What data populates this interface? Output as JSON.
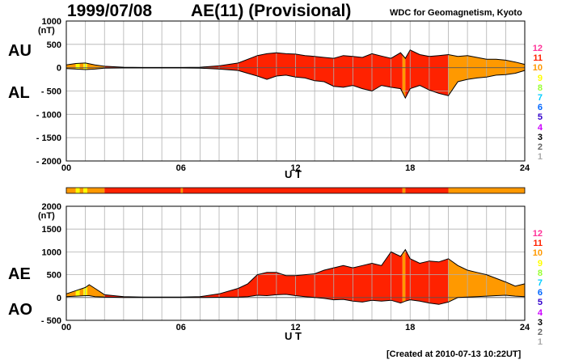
{
  "header": {
    "date": "1999/07/08",
    "title": "AE(11) (Provisional)",
    "source": "WDC for Geomagnetism, Kyoto"
  },
  "footer": {
    "created": "[Created at 2010-07-13 10:22UT]"
  },
  "panels": {
    "top": {
      "label_upper": "AU",
      "label_lower": "AL",
      "unit": "(nT)"
    },
    "bottom": {
      "label_upper": "AE",
      "label_lower": "AO",
      "unit": "(nT)"
    }
  },
  "legend": [
    {
      "label": "12",
      "color": "#ff3399"
    },
    {
      "label": "11",
      "color": "#ff2200"
    },
    {
      "label": "10",
      "color": "#ff9900"
    },
    {
      "label": "9",
      "color": "#ffff00"
    },
    {
      "label": "8",
      "color": "#99ff33"
    },
    {
      "label": "7",
      "color": "#00ccff"
    },
    {
      "label": "6",
      "color": "#0066ff"
    },
    {
      "label": "5",
      "color": "#3300cc"
    },
    {
      "label": "4",
      "color": "#cc00ff"
    },
    {
      "label": "3",
      "color": "#000000"
    },
    {
      "label": "2",
      "color": "#666666"
    },
    {
      "label": "1",
      "color": "#aaaaaa"
    }
  ],
  "station_bar": [
    {
      "from": 0,
      "to": 0.5,
      "stations": 10
    },
    {
      "from": 0.5,
      "to": 0.7,
      "stations": 9
    },
    {
      "from": 0.7,
      "to": 0.9,
      "stations": 10
    },
    {
      "from": 0.9,
      "to": 1.1,
      "stations": 9
    },
    {
      "from": 1.1,
      "to": 2,
      "stations": 10
    },
    {
      "from": 2,
      "to": 6,
      "stations": 11
    },
    {
      "from": 6,
      "to": 6.1,
      "stations": 10
    },
    {
      "from": 6.1,
      "to": 17.6,
      "stations": 11
    },
    {
      "from": 17.6,
      "to": 17.75,
      "stations": 10
    },
    {
      "from": 17.75,
      "to": 20,
      "stations": 11
    },
    {
      "from": 20,
      "to": 24,
      "stations": 10
    }
  ],
  "chart_data": [
    {
      "type": "area",
      "series_names": [
        "AU",
        "AL"
      ],
      "xlabel": "U T",
      "ylabel": "(nT)",
      "xlim": [
        0,
        24
      ],
      "ylim": [
        -2000,
        1000
      ],
      "xticks": [
        0,
        6,
        12,
        18,
        24
      ],
      "xtick_labels": [
        "00",
        "06",
        "12",
        "18",
        "24"
      ],
      "yticks": [
        1000,
        500,
        0,
        -500,
        -1000,
        -1500,
        -2000
      ],
      "ytick_labels": [
        "1000",
        "500",
        "0",
        "- 500",
        "- 1000",
        "- 1500",
        "- 2000"
      ],
      "grid": true,
      "x": [
        0,
        0.5,
        1,
        1.5,
        2,
        3,
        4,
        5,
        6,
        7,
        8,
        9,
        9.5,
        10,
        10.5,
        11,
        11.5,
        12,
        12.5,
        13,
        13.5,
        14,
        14.5,
        15,
        15.5,
        16,
        16.5,
        17,
        17.5,
        17.75,
        18,
        18.5,
        19,
        19.5,
        20,
        20.5,
        21,
        21.5,
        22,
        22.5,
        23,
        23.5,
        24
      ],
      "AU": [
        60,
        90,
        100,
        60,
        30,
        10,
        5,
        5,
        5,
        10,
        40,
        100,
        180,
        260,
        300,
        320,
        300,
        290,
        260,
        240,
        220,
        200,
        260,
        240,
        220,
        300,
        250,
        200,
        320,
        200,
        380,
        280,
        240,
        260,
        280,
        240,
        260,
        220,
        180,
        180,
        160,
        120,
        70
      ],
      "AL": [
        -20,
        -30,
        -40,
        -30,
        -10,
        -5,
        -5,
        -5,
        -5,
        -10,
        -30,
        -60,
        -120,
        -180,
        -250,
        -180,
        -160,
        -200,
        -220,
        -280,
        -300,
        -400,
        -420,
        -380,
        -450,
        -500,
        -380,
        -420,
        -450,
        -650,
        -450,
        -380,
        -480,
        -550,
        -600,
        -300,
        -250,
        -220,
        -200,
        -160,
        -150,
        -120,
        -60
      ]
    },
    {
      "type": "area",
      "series_names": [
        "AE",
        "AO"
      ],
      "xlabel": "U T",
      "ylabel": "(nT)",
      "xlim": [
        0,
        24
      ],
      "ylim": [
        -500,
        2000
      ],
      "xticks": [
        0,
        6,
        12,
        18,
        24
      ],
      "xtick_labels": [
        "00",
        "06",
        "12",
        "18",
        "24"
      ],
      "yticks": [
        2000,
        1500,
        1000,
        500,
        0,
        -500
      ],
      "ytick_labels": [
        "2000",
        "1500",
        "1000",
        "500",
        "0",
        "- 500"
      ],
      "grid": true,
      "x": [
        0,
        0.5,
        1,
        1.2,
        1.5,
        2,
        3,
        4,
        5,
        6,
        7,
        8,
        9,
        9.5,
        10,
        10.5,
        11,
        11.5,
        12,
        12.5,
        13,
        13.5,
        14,
        14.5,
        15,
        15.5,
        16,
        16.5,
        17,
        17.5,
        17.75,
        18,
        18.5,
        19,
        19.5,
        20,
        20.5,
        21,
        21.5,
        22,
        22.5,
        23,
        23.5,
        24
      ],
      "AE": [
        80,
        150,
        220,
        280,
        200,
        60,
        20,
        10,
        10,
        10,
        20,
        80,
        200,
        300,
        500,
        550,
        550,
        480,
        480,
        500,
        520,
        600,
        650,
        700,
        650,
        700,
        750,
        700,
        1000,
        900,
        1050,
        850,
        750,
        800,
        780,
        850,
        700,
        600,
        550,
        500,
        420,
        340,
        250,
        300
      ],
      "AO": [
        20,
        30,
        40,
        40,
        20,
        10,
        0,
        0,
        0,
        0,
        0,
        5,
        10,
        20,
        50,
        40,
        60,
        70,
        40,
        20,
        0,
        -20,
        -50,
        -40,
        -80,
        -100,
        -60,
        -80,
        -60,
        -120,
        -80,
        -50,
        -80,
        -120,
        -150,
        -100,
        0,
        10,
        20,
        30,
        40,
        50,
        30,
        20
      ]
    }
  ]
}
